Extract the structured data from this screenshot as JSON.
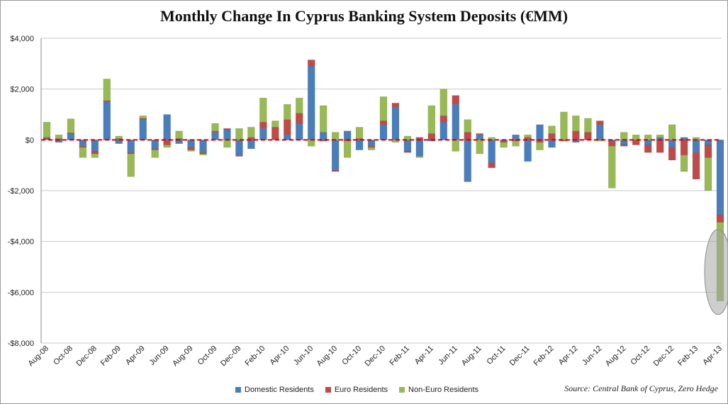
{
  "colors": {
    "domestic": "#4a7ebb",
    "euro": "#be4b48",
    "non_euro": "#98b954",
    "zero_line": "#d00000",
    "grid": "#c8c8c8",
    "highlight": "#a6a6a6"
  },
  "legend": {
    "domestic": "Domestic Residents",
    "euro": "Euro Residents",
    "non_euro": "Non-Euro Residents"
  },
  "source": "Source: Central Bank of Cyprus, Zero Hedge",
  "chart_data": {
    "type": "bar",
    "stacked": true,
    "title": "Monthly Change In Cyprus Banking System Deposits (€MM)",
    "xlabel": "",
    "ylabel": "",
    "ylim": [
      -8000,
      4000
    ],
    "yticks": [
      4000,
      2000,
      0,
      -2000,
      -4000,
      -6000,
      -8000
    ],
    "ytick_labels": [
      "$4,000",
      "$2,000",
      "$0",
      "-$2,000",
      "-$4,000",
      "-$6,000",
      "-$8,000"
    ],
    "grid": true,
    "zero_line": "dashed",
    "legend_position": "bottom",
    "categories": [
      "Aug-08",
      "Sep-08",
      "Oct-08",
      "Nov-08",
      "Dec-08",
      "Jan-09",
      "Feb-09",
      "Mar-09",
      "Apr-09",
      "May-09",
      "Jun-09",
      "Jul-09",
      "Aug-09",
      "Sep-09",
      "Oct-09",
      "Nov-09",
      "Dec-09",
      "Jan-10",
      "Feb-10",
      "Mar-10",
      "Apr-10",
      "May-10",
      "Jun-10",
      "Jul-10",
      "Aug-10",
      "Sep-10",
      "Oct-10",
      "Nov-10",
      "Dec-10",
      "Jan-11",
      "Feb-11",
      "Mar-11",
      "Apr-11",
      "May-11",
      "Jun-11",
      "Jul-11",
      "Aug-11",
      "Sep-11",
      "Oct-11",
      "Nov-11",
      "Dec-11",
      "Jan-12",
      "Feb-12",
      "Mar-12",
      "Apr-12",
      "May-12",
      "Jun-12",
      "Jul-12",
      "Aug-12",
      "Sep-12",
      "Oct-12",
      "Nov-12",
      "Dec-12",
      "Jan-13",
      "Feb-13",
      "Mar-13",
      "Apr-13"
    ],
    "tick_labels": [
      "Aug-08",
      "Oct-08",
      "Dec-08",
      "Feb-09",
      "Apr-09",
      "Jun-09",
      "Aug-09",
      "Oct-09",
      "Dec-09",
      "Feb-10",
      "Apr-10",
      "Jun-10",
      "Aug-10",
      "Oct-10",
      "Dec-10",
      "Feb-11",
      "Apr-11",
      "Jun-11",
      "Aug-11",
      "Oct-11",
      "Dec-11",
      "Feb-12",
      "Apr-12",
      "Jun-12",
      "Aug-12",
      "Oct-12",
      "Dec-12",
      "Feb-13",
      "Apr-13"
    ],
    "series": [
      {
        "name": "Domestic Residents",
        "key": "domestic",
        "values": [
          50,
          -100,
          250,
          -250,
          -450,
          1500,
          -150,
          -500,
          800,
          -350,
          1000,
          -150,
          -300,
          -500,
          300,
          400,
          -600,
          -350,
          450,
          0,
          200,
          650,
          2900,
          300,
          -1200,
          350,
          -400,
          -250,
          600,
          1300,
          -450,
          -650,
          -50,
          700,
          1400,
          -1650,
          200,
          -900,
          -50,
          200,
          -850,
          600,
          -300,
          0,
          -100,
          0,
          600,
          -50,
          -200,
          0,
          -200,
          100,
          -300,
          100,
          -500,
          -200,
          -2950
        ]
      },
      {
        "name": "Euro Residents",
        "key": "euro",
        "values": [
          50,
          50,
          30,
          -50,
          -100,
          50,
          50,
          -50,
          50,
          -50,
          -200,
          50,
          -100,
          -50,
          50,
          50,
          -50,
          100,
          250,
          500,
          600,
          400,
          250,
          -50,
          -50,
          -50,
          50,
          -50,
          150,
          150,
          -50,
          100,
          250,
          250,
          350,
          300,
          50,
          -200,
          -50,
          -50,
          100,
          -100,
          250,
          -50,
          350,
          300,
          150,
          -200,
          -50,
          -200,
          -300,
          -500,
          -500,
          -600,
          -1050,
          -500,
          -300
        ]
      },
      {
        "name": "Non-Euro Residents",
        "key": "non_euro",
        "values": [
          600,
          150,
          550,
          -400,
          -150,
          850,
          100,
          -900,
          100,
          -300,
          -100,
          300,
          -50,
          -50,
          300,
          -300,
          450,
          400,
          950,
          250,
          600,
          600,
          -250,
          1050,
          300,
          -650,
          450,
          -100,
          950,
          -100,
          150,
          -50,
          1100,
          1050,
          -450,
          500,
          -550,
          100,
          -200,
          -200,
          100,
          -300,
          300,
          1100,
          600,
          550,
          -50,
          -1650,
          300,
          200,
          200,
          100,
          600,
          -650,
          100,
          -1300,
          -3100
        ]
      }
    ],
    "annotations": [
      {
        "type": "ellipse",
        "target": "Apr-13",
        "note": "highlighted"
      }
    ]
  }
}
